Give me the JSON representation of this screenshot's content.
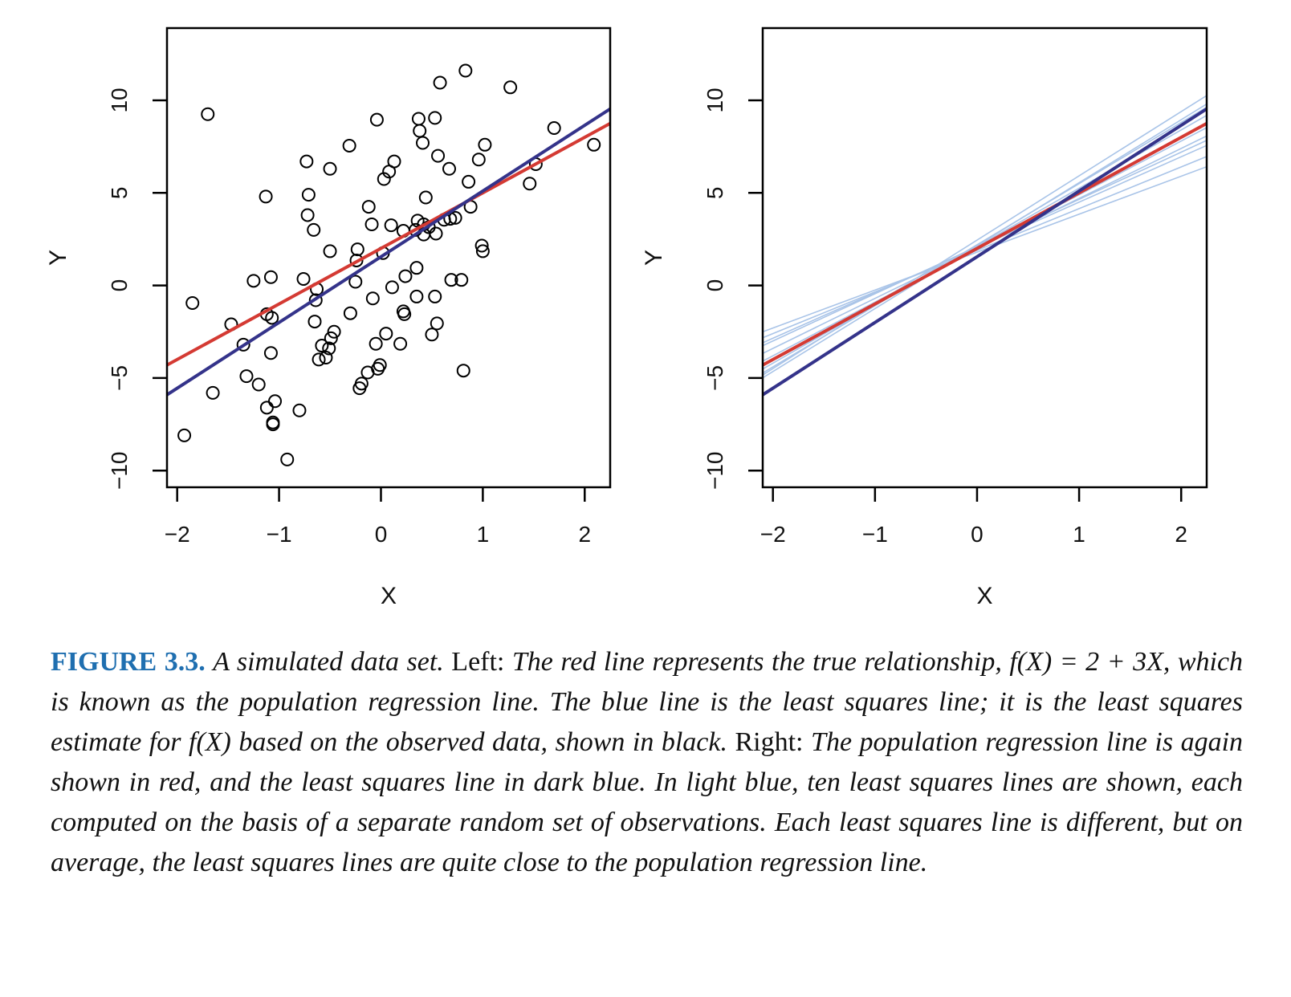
{
  "colors": {
    "true_line": "#d43a33",
    "ls_line": "#34338a",
    "light_lines": "#a9c4e8",
    "points": "#000000",
    "caption_label": "#1f6fb0"
  },
  "chart_data": [
    {
      "type": "scatter",
      "name": "left-panel",
      "xlabel": "X",
      "ylabel": "Y",
      "xlim": [
        -2.1,
        2.25
      ],
      "ylim": [
        -10.9,
        13.9
      ],
      "xticks": [
        -2,
        -1,
        0,
        1,
        2
      ],
      "xtick_labels": [
        "−2",
        "−1",
        "0",
        "1",
        "2"
      ],
      "yticks": [
        -10,
        -5,
        0,
        5,
        10
      ],
      "ytick_labels": [
        "−10",
        "−5",
        "0",
        "5",
        "10"
      ],
      "points": [
        [
          -1.93,
          -8.1
        ],
        [
          -1.85,
          -0.95
        ],
        [
          -1.7,
          9.25
        ],
        [
          -1.65,
          -5.8
        ],
        [
          -1.47,
          -2.1
        ],
        [
          -1.35,
          -3.2
        ],
        [
          -1.32,
          -4.9
        ],
        [
          -1.25,
          0.25
        ],
        [
          -1.2,
          -5.35
        ],
        [
          -1.13,
          4.8
        ],
        [
          -1.12,
          -1.55
        ],
        [
          -1.12,
          -6.6
        ],
        [
          -1.08,
          0.45
        ],
        [
          -1.08,
          -3.65
        ],
        [
          -1.07,
          -1.75
        ],
        [
          -1.06,
          -7.4
        ],
        [
          -1.06,
          -7.5
        ],
        [
          -1.04,
          -6.25
        ],
        [
          -0.92,
          -9.4
        ],
        [
          -0.8,
          -6.75
        ],
        [
          -0.76,
          0.35
        ],
        [
          -0.73,
          6.7
        ],
        [
          -0.72,
          3.8
        ],
        [
          -0.71,
          4.9
        ],
        [
          -0.66,
          3.0
        ],
        [
          -0.65,
          -1.95
        ],
        [
          -0.64,
          -0.8
        ],
        [
          -0.63,
          -0.2
        ],
        [
          -0.61,
          -4.0
        ],
        [
          -0.58,
          -3.25
        ],
        [
          -0.54,
          -3.9
        ],
        [
          -0.51,
          -3.4
        ],
        [
          -0.5,
          6.3
        ],
        [
          -0.5,
          1.85
        ],
        [
          -0.49,
          -2.85
        ],
        [
          -0.46,
          -2.5
        ],
        [
          -0.31,
          7.55
        ],
        [
          -0.3,
          -1.5
        ],
        [
          -0.25,
          0.2
        ],
        [
          -0.24,
          1.35
        ],
        [
          -0.23,
          1.95
        ],
        [
          -0.21,
          -5.55
        ],
        [
          -0.19,
          -5.3
        ],
        [
          -0.13,
          -4.7
        ],
        [
          -0.12,
          4.25
        ],
        [
          -0.09,
          3.3
        ],
        [
          -0.08,
          -0.7
        ],
        [
          -0.05,
          -3.15
        ],
        [
          -0.04,
          8.95
        ],
        [
          -0.03,
          -4.5
        ],
        [
          -0.01,
          -4.3
        ],
        [
          0.02,
          1.75
        ],
        [
          0.03,
          5.75
        ],
        [
          0.05,
          -2.6
        ],
        [
          0.08,
          6.15
        ],
        [
          0.1,
          3.25
        ],
        [
          0.11,
          -0.1
        ],
        [
          0.13,
          6.7
        ],
        [
          0.19,
          -3.15
        ],
        [
          0.22,
          -1.4
        ],
        [
          0.22,
          2.95
        ],
        [
          0.23,
          -1.55
        ],
        [
          0.24,
          0.5
        ],
        [
          0.34,
          3.0
        ],
        [
          0.35,
          -0.6
        ],
        [
          0.35,
          0.95
        ],
        [
          0.36,
          3.5
        ],
        [
          0.37,
          9.0
        ],
        [
          0.38,
          8.35
        ],
        [
          0.41,
          7.7
        ],
        [
          0.42,
          3.3
        ],
        [
          0.42,
          2.75
        ],
        [
          0.44,
          4.75
        ],
        [
          0.47,
          3.15
        ],
        [
          0.5,
          -2.65
        ],
        [
          0.53,
          -0.6
        ],
        [
          0.53,
          9.05
        ],
        [
          0.54,
          2.8
        ],
        [
          0.55,
          -2.05
        ],
        [
          0.56,
          7.0
        ],
        [
          0.58,
          10.95
        ],
        [
          0.62,
          3.55
        ],
        [
          0.67,
          6.3
        ],
        [
          0.68,
          3.6
        ],
        [
          0.69,
          0.3
        ],
        [
          0.73,
          3.65
        ],
        [
          0.79,
          0.3
        ],
        [
          0.81,
          -4.6
        ],
        [
          0.83,
          11.6
        ],
        [
          0.86,
          5.6
        ],
        [
          0.88,
          4.25
        ],
        [
          0.96,
          6.8
        ],
        [
          0.99,
          2.15
        ],
        [
          1.0,
          1.85
        ],
        [
          1.02,
          7.6
        ],
        [
          1.27,
          10.7
        ],
        [
          1.46,
          5.5
        ],
        [
          1.52,
          6.55
        ],
        [
          1.7,
          8.5
        ],
        [
          2.09,
          7.6
        ]
      ],
      "lines": [
        {
          "name": "population regression line",
          "intercept": 2.0,
          "slope": 3.0,
          "color": "#d43a33"
        },
        {
          "name": "least squares line",
          "intercept": 1.55,
          "slope": 3.55,
          "color": "#34338a"
        }
      ]
    },
    {
      "type": "line",
      "name": "right-panel",
      "xlabel": "X",
      "ylabel": "Y",
      "xlim": [
        -2.1,
        2.25
      ],
      "ylim": [
        -10.9,
        13.9
      ],
      "xticks": [
        -2,
        -1,
        0,
        1,
        2
      ],
      "xtick_labels": [
        "−2",
        "−1",
        "0",
        "1",
        "2"
      ],
      "yticks": [
        -10,
        -5,
        0,
        5,
        10
      ],
      "ytick_labels": [
        "−10",
        "−5",
        "0",
        "5",
        "10"
      ],
      "light_lines": [
        {
          "intercept": 2.45,
          "slope": 3.47
        },
        {
          "intercept": 2.2,
          "slope": 3.3
        },
        {
          "intercept": 2.1,
          "slope": 3.15
        },
        {
          "intercept": 2.0,
          "slope": 2.9
        },
        {
          "intercept": 2.1,
          "slope": 2.55
        },
        {
          "intercept": 2.05,
          "slope": 2.45
        },
        {
          "intercept": 1.9,
          "slope": 2.25
        },
        {
          "intercept": 1.8,
          "slope": 2.05
        },
        {
          "intercept": 2.15,
          "slope": 3.4
        },
        {
          "intercept": 2.0,
          "slope": 2.7
        }
      ],
      "lines": [
        {
          "name": "population regression line",
          "intercept": 2.0,
          "slope": 3.0,
          "color": "#d43a33"
        },
        {
          "name": "least squares line",
          "intercept": 1.55,
          "slope": 3.55,
          "color": "#34338a"
        }
      ]
    }
  ],
  "caption": {
    "label": "FIGURE 3.3.",
    "part1": "A simulated data set.",
    "left_label": "Left:",
    "part2": "The red line represents the true relationship,",
    "formula1": "f(X) = 2 + 3X",
    "part3": ", which is known as the population regression line. The blue line is the least squares line; it is the least squares estimate for",
    "formula2": "f(X)",
    "part4": "based on the observed data, shown in black.",
    "right_label": "Right:",
    "part5": "The population regression line is again shown in red, and the least squares line in dark blue. In light blue, ten least squares lines are shown, each computed on the basis of a separate random set of observations. Each least squares line is different, but on average, the least squares lines are quite close to the population regression line."
  }
}
